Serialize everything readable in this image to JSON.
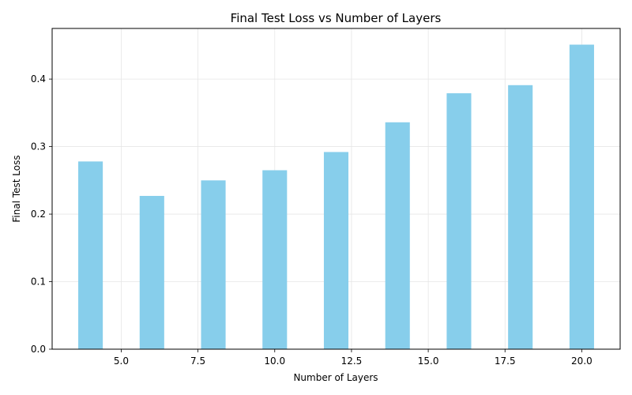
{
  "chart_data": {
    "type": "bar",
    "title": "Final Test Loss vs Number of Layers",
    "xlabel": "Number of Layers",
    "ylabel": "Final Test Loss",
    "x": [
      4,
      6,
      8,
      10,
      12,
      14,
      16,
      18,
      20
    ],
    "values": [
      0.278,
      0.227,
      0.25,
      0.265,
      0.292,
      0.336,
      0.379,
      0.391,
      0.451
    ],
    "bar_width": 0.8,
    "xlim": [
      2.75,
      21.25
    ],
    "ylim": [
      0,
      0.475
    ],
    "xticks": [
      5.0,
      7.5,
      10.0,
      12.5,
      15.0,
      17.5,
      20.0
    ],
    "xtick_labels": [
      "5.0",
      "7.5",
      "10.0",
      "12.5",
      "15.0",
      "17.5",
      "20.0"
    ],
    "yticks": [
      0.0,
      0.1,
      0.2,
      0.3,
      0.4
    ],
    "ytick_labels": [
      "0.0",
      "0.1",
      "0.2",
      "0.3",
      "0.4"
    ],
    "grid": true,
    "bar_color": "#87CEEB"
  }
}
